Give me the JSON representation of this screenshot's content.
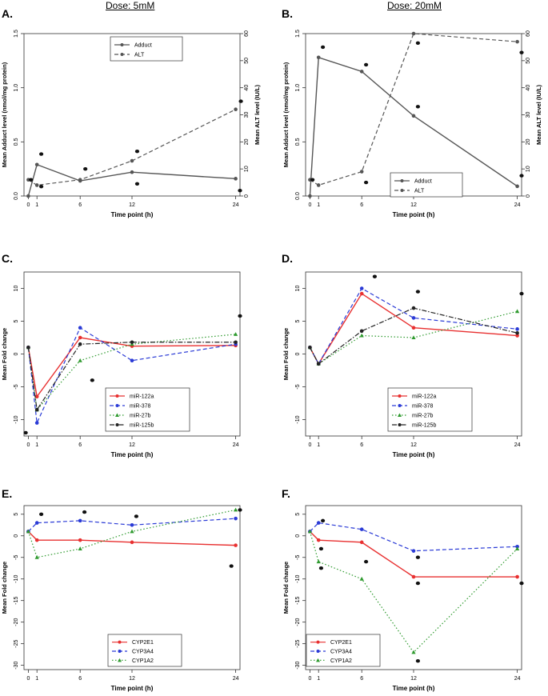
{
  "headers": {
    "left": "Dose: 5mM",
    "right": "Dose: 20mM"
  },
  "chart_data": [
    {
      "id": "A",
      "panel_label": "A.",
      "type": "line",
      "xlabel": "Time point (h)",
      "ylabel": "Mean Adduct level (nmol/mg protein)",
      "ylabel_right": "Mean ALT level (IU/L)",
      "x_ticks": [
        0,
        1,
        6,
        12,
        24
      ],
      "xlim": [
        -0.5,
        24.5
      ],
      "ylim": [
        0,
        1.5
      ],
      "y_ticks": [
        "0.0",
        "0.5",
        "1.0",
        "1.5"
      ],
      "y_tick_values": [
        0,
        0.5,
        1.0,
        1.5
      ],
      "ylim_right": [
        0,
        60
      ],
      "y_ticks_right": [
        "0",
        "10",
        "20",
        "30",
        "40",
        "50",
        "60"
      ],
      "legend_position": "top-center",
      "series": [
        {
          "name": "Adduct",
          "style": "solid",
          "color": "#555555",
          "axis": "left",
          "x": [
            0,
            1,
            6,
            12,
            24
          ],
          "y": [
            0.0,
            0.29,
            0.14,
            0.22,
            0.16
          ]
        },
        {
          "name": "ALT",
          "style": "dashed",
          "color": "#555555",
          "axis": "right",
          "x": [
            0,
            1,
            6,
            12,
            24
          ],
          "y": [
            6,
            4,
            6,
            13,
            32
          ]
        }
      ],
      "point_marks": [
        {
          "x": 0.3,
          "y": 6
        },
        {
          "x": 1.5,
          "y": 15.5
        },
        {
          "x": 6.6,
          "y": 10
        },
        {
          "x": 12.6,
          "y": 16.5
        },
        {
          "x": 12.6,
          "y": 4.5
        },
        {
          "x": 24.6,
          "y": 35
        },
        {
          "x": 24.5,
          "y": 2
        },
        {
          "x": 1.5,
          "y": 3.5
        }
      ]
    },
    {
      "id": "B",
      "panel_label": "B.",
      "type": "line",
      "xlabel": "Time point (h)",
      "ylabel": "Mean Adduct level (nmol/mg protein)",
      "ylabel_right": "Mean ALT level (IU/L)",
      "x_ticks": [
        0,
        1,
        6,
        12,
        24
      ],
      "xlim": [
        -0.5,
        24.5
      ],
      "ylim": [
        0,
        1.5
      ],
      "y_ticks": [
        "0.0",
        "0.5",
        "1.0",
        "1.5"
      ],
      "y_tick_values": [
        0,
        0.5,
        1.0,
        1.5
      ],
      "ylim_right": [
        0,
        60
      ],
      "y_ticks_right": [
        "0",
        "10",
        "20",
        "30",
        "40",
        "50",
        "60"
      ],
      "legend_position": "bottom-center",
      "series": [
        {
          "name": "Adduct",
          "style": "solid",
          "color": "#555555",
          "axis": "left",
          "x": [
            0,
            1,
            6,
            12,
            24
          ],
          "y": [
            0.0,
            1.28,
            1.15,
            0.74,
            0.09
          ]
        },
        {
          "name": "ALT",
          "style": "dashed",
          "color": "#555555",
          "axis": "right",
          "x": [
            0,
            1,
            6,
            12,
            24
          ],
          "y": [
            6,
            4,
            9,
            60,
            57
          ]
        }
      ],
      "point_marks": [
        {
          "x": 0.3,
          "y": 6
        },
        {
          "x": 1.5,
          "y": 55
        },
        {
          "x": 6.5,
          "y": 48.5
        },
        {
          "x": 6.5,
          "y": 5
        },
        {
          "x": 12.5,
          "y": 33
        },
        {
          "x": 12.5,
          "y": 56.5
        },
        {
          "x": 24.5,
          "y": 53
        },
        {
          "x": 24.5,
          "y": 7.5
        }
      ]
    },
    {
      "id": "C",
      "panel_label": "C.",
      "type": "line",
      "xlabel": "Time point (h)",
      "ylabel": "Mean Fold change",
      "x_ticks": [
        0,
        1,
        6,
        12,
        24
      ],
      "xlim": [
        -0.5,
        24.5
      ],
      "ylim": [
        -12.5,
        12.5
      ],
      "y_ticks": [
        "-10",
        "-5",
        "0",
        "5",
        "10"
      ],
      "y_tick_values": [
        -10,
        -5,
        0,
        5,
        10
      ],
      "legend_position": "bottom-right",
      "series": [
        {
          "name": "miR-122a",
          "style": "solid",
          "color": "#e83030",
          "x": [
            0,
            1,
            6,
            12,
            24
          ],
          "y": [
            1,
            -6.5,
            2.5,
            1.2,
            1.3
          ]
        },
        {
          "name": "miR-378",
          "style": "dashed",
          "color": "#2a3ad6",
          "x": [
            0,
            1,
            6,
            12,
            24
          ],
          "y": [
            1,
            -10.5,
            4,
            -1,
            1.5
          ]
        },
        {
          "name": "miR-27b",
          "style": "dotted",
          "color": "#2e9a2e",
          "x": [
            0,
            1,
            6,
            12,
            24
          ],
          "y": [
            1,
            -8.5,
            -1,
            1.5,
            3
          ]
        },
        {
          "name": "miR-125b",
          "style": "dashdot",
          "color": "#222222",
          "x": [
            0,
            1,
            6,
            12,
            24
          ],
          "y": [
            1,
            -8.5,
            1.5,
            1.8,
            1.8
          ]
        }
      ],
      "point_marks": [
        {
          "x": -0.3,
          "y": -12
        },
        {
          "x": 7.4,
          "y": -4
        },
        {
          "x": 24.5,
          "y": 5.8
        }
      ]
    },
    {
      "id": "D",
      "panel_label": "D.",
      "type": "line",
      "xlabel": "Time point (h)",
      "ylabel": "Mean Fold change",
      "x_ticks": [
        0,
        1,
        6,
        12,
        24
      ],
      "xlim": [
        -0.5,
        24.5
      ],
      "ylim": [
        -12.5,
        12.5
      ],
      "y_ticks": [
        "-10",
        "-5",
        "0",
        "5",
        "10"
      ],
      "y_tick_values": [
        -10,
        -5,
        0,
        5,
        10
      ],
      "legend_position": "bottom-right",
      "series": [
        {
          "name": "miR-122a",
          "style": "solid",
          "color": "#e83030",
          "x": [
            0,
            1,
            6,
            12,
            24
          ],
          "y": [
            1,
            -1.5,
            9.2,
            4,
            2.8
          ]
        },
        {
          "name": "miR-378",
          "style": "dashed",
          "color": "#2a3ad6",
          "x": [
            0,
            1,
            6,
            12,
            24
          ],
          "y": [
            1,
            -1.5,
            10,
            5.5,
            3.8
          ]
        },
        {
          "name": "miR-27b",
          "style": "dotted",
          "color": "#2e9a2e",
          "x": [
            0,
            1,
            6,
            12,
            24
          ],
          "y": [
            1,
            -1.5,
            2.8,
            2.5,
            6.5
          ]
        },
        {
          "name": "miR-125b",
          "style": "dashdot",
          "color": "#222222",
          "x": [
            0,
            1,
            6,
            12,
            24
          ],
          "y": [
            1,
            -1.5,
            3.5,
            7,
            3.2
          ]
        }
      ],
      "point_marks": [
        {
          "x": 7.5,
          "y": 11.8
        },
        {
          "x": 12.5,
          "y": 9.5
        },
        {
          "x": 24.5,
          "y": 9.2
        }
      ]
    },
    {
      "id": "E",
      "panel_label": "E.",
      "type": "line",
      "xlabel": "Time point (h)",
      "ylabel": "Mean Fold change",
      "x_ticks": [
        0,
        1,
        6,
        12,
        24
      ],
      "xlim": [
        -0.5,
        24.5
      ],
      "ylim": [
        -31,
        7
      ],
      "y_ticks": [
        "-30",
        "-25",
        "-20",
        "-15",
        "-10",
        "-5",
        "0",
        "5"
      ],
      "y_tick_values": [
        -30,
        -25,
        -20,
        -15,
        -10,
        -5,
        0,
        5
      ],
      "legend_position": "bottom-center",
      "series": [
        {
          "name": "CYP2E1",
          "style": "solid",
          "color": "#e83030",
          "x": [
            0,
            1,
            6,
            12,
            24
          ],
          "y": [
            1,
            -1,
            -1,
            -1.5,
            -2.2
          ]
        },
        {
          "name": "CYP3A4",
          "style": "dashed",
          "color": "#2a3ad6",
          "x": [
            0,
            1,
            6,
            12,
            24
          ],
          "y": [
            1,
            3,
            3.5,
            2.5,
            4
          ]
        },
        {
          "name": "CYP1A2",
          "style": "dotted",
          "color": "#2e9a2e",
          "x": [
            0,
            1,
            6,
            12,
            24
          ],
          "y": [
            1,
            -5,
            -3,
            1,
            6
          ]
        }
      ],
      "point_marks": [
        {
          "x": 1.5,
          "y": 5
        },
        {
          "x": 6.5,
          "y": 5.5
        },
        {
          "x": 12.5,
          "y": 4.5
        },
        {
          "x": 24.5,
          "y": 6
        },
        {
          "x": 23.5,
          "y": -7
        }
      ]
    },
    {
      "id": "F",
      "panel_label": "F.",
      "type": "line",
      "xlabel": "Time point (h)",
      "ylabel": "Mean Fold change",
      "x_ticks": [
        0,
        1,
        6,
        12,
        24
      ],
      "xlim": [
        -0.5,
        24.5
      ],
      "ylim": [
        -31,
        7
      ],
      "y_ticks": [
        "-30",
        "-25",
        "-20",
        "-15",
        "-10",
        "-5",
        "0",
        "5"
      ],
      "y_tick_values": [
        -30,
        -25,
        -20,
        -15,
        -10,
        -5,
        0,
        5
      ],
      "legend_position": "bottom-left",
      "series": [
        {
          "name": "CYP2E1",
          "style": "solid",
          "color": "#e83030",
          "x": [
            0,
            1,
            6,
            12,
            24
          ],
          "y": [
            1,
            -1,
            -1.5,
            -9.5,
            -9.5
          ]
        },
        {
          "name": "CYP3A4",
          "style": "dashed",
          "color": "#2a3ad6",
          "x": [
            0,
            1,
            6,
            12,
            24
          ],
          "y": [
            1,
            3,
            1.5,
            -3.5,
            -2.5
          ]
        },
        {
          "name": "CYP1A2",
          "style": "dotted",
          "color": "#2e9a2e",
          "x": [
            0,
            1,
            6,
            12,
            24
          ],
          "y": [
            1,
            -6,
            -10,
            -27,
            -3
          ]
        }
      ],
      "point_marks": [
        {
          "x": 1.5,
          "y": 3.5
        },
        {
          "x": 1.3,
          "y": -3
        },
        {
          "x": 1.3,
          "y": -7.5
        },
        {
          "x": 6.5,
          "y": -6
        },
        {
          "x": 12.5,
          "y": -5
        },
        {
          "x": 12.5,
          "y": -11
        },
        {
          "x": 12.5,
          "y": -29
        },
        {
          "x": 24.5,
          "y": -11
        }
      ]
    }
  ]
}
